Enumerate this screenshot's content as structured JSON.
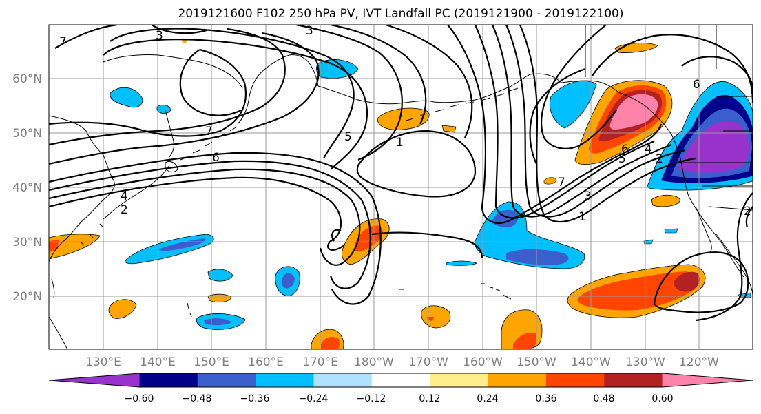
{
  "title": "2019121600 F102 250 hPa PV, IVT Landfall PC (2019121900 - 2019122100)",
  "lat_labels": [
    "60°N",
    "50°N",
    "40°N",
    "30°N",
    "20°N"
  ],
  "lon_labels": [
    "130°E",
    "140°E",
    "150°E",
    "160°E",
    "170°E",
    "180°W",
    "170°W",
    "160°W",
    "150°W",
    "140°W",
    "130°W",
    "120°W"
  ],
  "colorbar": {
    "ticks": [
      "−0.60",
      "−0.48",
      "−0.36",
      "−0.24",
      "−0.12",
      "0.12",
      "0.24",
      "0.36",
      "0.48",
      "0.60"
    ],
    "colors": [
      "#9932cc",
      "#00008b",
      "#3a5fcd",
      "#00bfff",
      "#b0e2ff",
      "#ffffff",
      "#ffec8b",
      "#ffa500",
      "#ff4500",
      "#b22222",
      "#ff82ab"
    ]
  },
  "pv_contour_labels": [
    "7",
    "3",
    "3",
    "7",
    "6",
    "5",
    "1",
    "4",
    "2",
    "7",
    "3",
    "1",
    "5",
    "6",
    "4",
    "2",
    "6",
    "2"
  ],
  "colors": {
    "contour": "#000000",
    "grid": "#9a9a9a",
    "axis_label": "#808080"
  }
}
